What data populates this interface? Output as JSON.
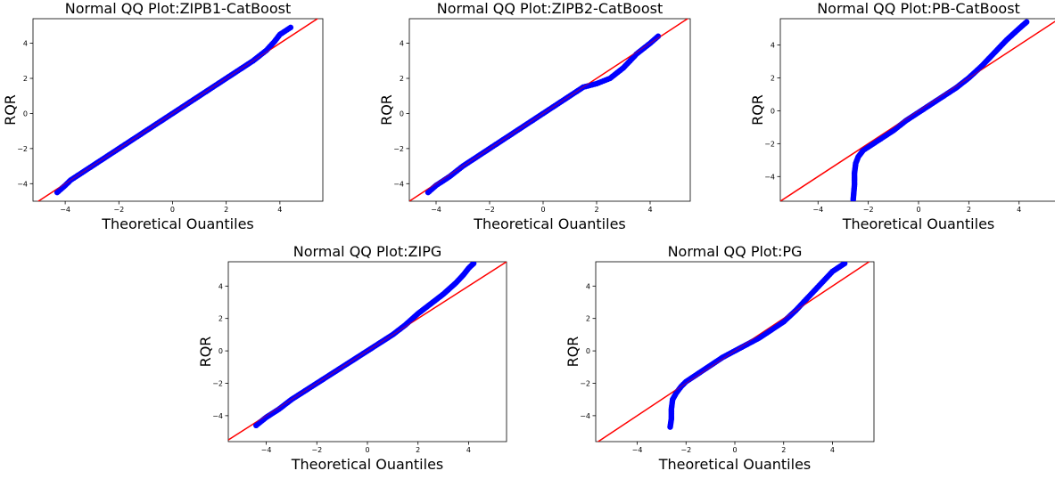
{
  "chart_data": [
    {
      "type": "scatter",
      "title": "Normal QQ Plot:ZIPB1-CatBoost",
      "xlabel": "Theoretical Ouantiles",
      "ylabel": "RQR",
      "xlim": [
        -5.2,
        5.6
      ],
      "ylim": [
        -5.0,
        5.4
      ],
      "xticks": [
        -4,
        -2,
        0,
        2,
        4
      ],
      "yticks": [
        -4,
        -2,
        0,
        2,
        4
      ],
      "x": [
        -4.3,
        -4.0,
        -3.8,
        -3.5,
        -3.0,
        -2.5,
        -2.0,
        -1.5,
        -1.0,
        -0.5,
        0.0,
        0.5,
        1.0,
        1.5,
        2.0,
        2.5,
        3.0,
        3.5,
        3.8,
        4.0,
        4.2,
        4.4
      ],
      "y": [
        -4.5,
        -4.1,
        -3.8,
        -3.5,
        -3.0,
        -2.5,
        -2.0,
        -1.5,
        -1.0,
        -0.5,
        0.0,
        0.5,
        1.0,
        1.5,
        2.0,
        2.5,
        3.0,
        3.6,
        4.1,
        4.5,
        4.7,
        4.9
      ],
      "reference_line": {
        "slope": 1,
        "intercept": 0
      },
      "marker_color": "#0000ff",
      "line_color": "#ff0000"
    },
    {
      "type": "scatter",
      "title": "Normal QQ Plot:ZIPB2-CatBoost",
      "xlabel": "Theoretical Ouantiles",
      "ylabel": "RQR",
      "xlim": [
        -5.0,
        5.5
      ],
      "ylim": [
        -5.0,
        5.4
      ],
      "xticks": [
        -4,
        -2,
        0,
        2,
        4
      ],
      "yticks": [
        -4,
        -2,
        0,
        2,
        4
      ],
      "x": [
        -4.3,
        -4.0,
        -3.5,
        -3.0,
        -2.5,
        -2.0,
        -1.5,
        -1.0,
        -0.5,
        0.0,
        0.5,
        1.0,
        1.5,
        2.0,
        2.5,
        3.0,
        3.5,
        4.0,
        4.3
      ],
      "y": [
        -4.5,
        -4.1,
        -3.6,
        -3.0,
        -2.5,
        -2.0,
        -1.5,
        -1.0,
        -0.5,
        0.0,
        0.5,
        1.0,
        1.5,
        1.7,
        2.0,
        2.6,
        3.4,
        4.0,
        4.4
      ],
      "reference_line": {
        "slope": 1,
        "intercept": 0
      },
      "marker_color": "#0000ff",
      "line_color": "#ff0000"
    },
    {
      "type": "scatter",
      "title": "Normal QQ Plot:PB-CatBoost",
      "xlabel": "Theoretical Ouantiles",
      "ylabel": "RQR",
      "xlim": [
        -5.5,
        5.5
      ],
      "ylim": [
        -5.5,
        5.6
      ],
      "xticks": [
        -4,
        -2,
        0,
        2,
        4
      ],
      "yticks": [
        -4,
        -2,
        0,
        2,
        4
      ],
      "x": [
        -2.6,
        -2.55,
        -2.55,
        -2.5,
        -2.4,
        -2.2,
        -2.0,
        -1.5,
        -1.0,
        -0.5,
        0.0,
        0.5,
        1.0,
        1.5,
        2.0,
        2.5,
        3.0,
        3.5,
        4.0,
        4.3
      ],
      "y": [
        -5.4,
        -4.5,
        -3.8,
        -3.2,
        -2.8,
        -2.4,
        -2.2,
        -1.7,
        -1.2,
        -0.6,
        -0.1,
        0.4,
        0.9,
        1.4,
        2.0,
        2.7,
        3.5,
        4.3,
        5.0,
        5.4
      ],
      "reference_line": {
        "slope": 1,
        "intercept": 0
      },
      "marker_color": "#0000ff",
      "line_color": "#ff0000"
    },
    {
      "type": "scatter",
      "title": "Normal QQ Plot:ZIPG",
      "xlabel": "Theoretical Ouantiles",
      "ylabel": "RQR",
      "xlim": [
        -5.5,
        5.5
      ],
      "ylim": [
        -5.6,
        5.5
      ],
      "xticks": [
        -4,
        -2,
        0,
        2,
        4
      ],
      "yticks": [
        -4,
        -2,
        0,
        2,
        4
      ],
      "x": [
        -4.4,
        -4.0,
        -3.5,
        -3.0,
        -2.5,
        -2.0,
        -1.5,
        -1.0,
        -0.5,
        0.0,
        0.5,
        1.0,
        1.5,
        2.0,
        2.5,
        3.0,
        3.5,
        3.8,
        4.0,
        4.2
      ],
      "y": [
        -4.6,
        -4.1,
        -3.6,
        -3.0,
        -2.5,
        -2.0,
        -1.5,
        -1.0,
        -0.5,
        0.0,
        0.5,
        1.0,
        1.6,
        2.3,
        2.9,
        3.5,
        4.2,
        4.7,
        5.1,
        5.4
      ],
      "reference_line": {
        "slope": 1,
        "intercept": 0
      },
      "marker_color": "#0000ff",
      "line_color": "#ff0000"
    },
    {
      "type": "scatter",
      "title": "Normal QQ Plot:PG",
      "xlabel": "Theoretical Ouantiles",
      "ylabel": "RQR",
      "xlim": [
        -5.7,
        5.7
      ],
      "ylim": [
        -5.6,
        5.5
      ],
      "xticks": [
        -4,
        -2,
        0,
        2,
        4
      ],
      "yticks": [
        -4,
        -2,
        0,
        2,
        4
      ],
      "x": [
        -2.65,
        -2.6,
        -2.6,
        -2.55,
        -2.4,
        -2.2,
        -2.0,
        -1.5,
        -1.0,
        -0.5,
        0.0,
        0.5,
        1.0,
        1.5,
        2.0,
        2.5,
        3.0,
        3.5,
        4.0,
        4.5
      ],
      "y": [
        -4.7,
        -4.2,
        -3.6,
        -3.0,
        -2.6,
        -2.2,
        -1.9,
        -1.4,
        -0.9,
        -0.4,
        0.0,
        0.4,
        0.8,
        1.3,
        1.8,
        2.5,
        3.3,
        4.1,
        4.9,
        5.4
      ],
      "reference_line": {
        "slope": 1,
        "intercept": 0
      },
      "marker_color": "#0000ff",
      "line_color": "#ff0000"
    }
  ]
}
